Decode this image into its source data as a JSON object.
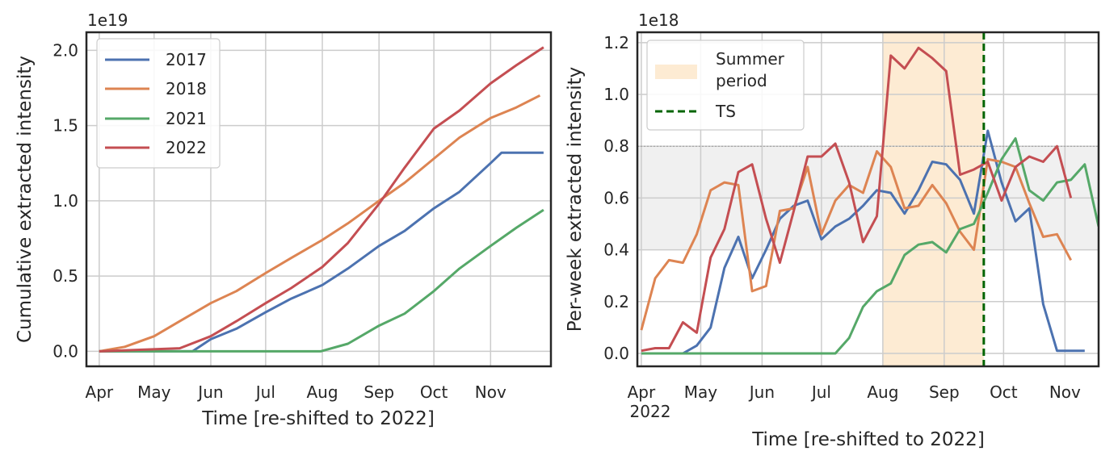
{
  "chart_data": [
    {
      "type": "line",
      "xlabel": "Time [re-shifted to 2022]",
      "ylabel": "Cumulative extracted intensity",
      "offset_text": "1e19",
      "x_ticks": [
        "Apr",
        "May",
        "Jun",
        "Jul",
        "Aug",
        "Sep",
        "Oct",
        "Nov"
      ],
      "y_ticks": [
        "0.0",
        "0.5",
        "1.0",
        "1.5",
        "2.0"
      ],
      "xlim": [
        "2022-03-25",
        "2022-12-04"
      ],
      "ylim": [
        -0.1,
        2.12
      ],
      "grid": true,
      "legend_position": "top-left",
      "series": [
        {
          "name": "2017",
          "color": "#4c72b0",
          "points": [
            [
              "2022-04-01",
              0
            ],
            [
              "2022-05-22",
              0
            ],
            [
              "2022-06-01",
              0.08
            ],
            [
              "2022-06-15",
              0.15
            ],
            [
              "2022-07-01",
              0.26
            ],
            [
              "2022-07-15",
              0.35
            ],
            [
              "2022-08-01",
              0.44
            ],
            [
              "2022-08-15",
              0.55
            ],
            [
              "2022-09-01",
              0.7
            ],
            [
              "2022-09-15",
              0.8
            ],
            [
              "2022-10-01",
              0.95
            ],
            [
              "2022-10-15",
              1.06
            ],
            [
              "2022-11-01",
              1.25
            ],
            [
              "2022-11-07",
              1.32
            ],
            [
              "2022-11-30",
              1.32
            ]
          ]
        },
        {
          "name": "2018",
          "color": "#dd8452",
          "points": [
            [
              "2022-04-01",
              0
            ],
            [
              "2022-04-15",
              0.03
            ],
            [
              "2022-05-01",
              0.1
            ],
            [
              "2022-05-15",
              0.2
            ],
            [
              "2022-06-01",
              0.32
            ],
            [
              "2022-06-15",
              0.4
            ],
            [
              "2022-07-01",
              0.52
            ],
            [
              "2022-07-15",
              0.62
            ],
            [
              "2022-08-01",
              0.74
            ],
            [
              "2022-08-15",
              0.85
            ],
            [
              "2022-09-01",
              1.0
            ],
            [
              "2022-09-15",
              1.12
            ],
            [
              "2022-10-01",
              1.28
            ],
            [
              "2022-10-15",
              1.42
            ],
            [
              "2022-11-01",
              1.55
            ],
            [
              "2022-11-15",
              1.62
            ],
            [
              "2022-11-28",
              1.7
            ]
          ]
        },
        {
          "name": "2021",
          "color": "#55a868",
          "points": [
            [
              "2022-04-01",
              0
            ],
            [
              "2022-07-31",
              0
            ],
            [
              "2022-08-15",
              0.05
            ],
            [
              "2022-09-01",
              0.17
            ],
            [
              "2022-09-15",
              0.25
            ],
            [
              "2022-10-01",
              0.4
            ],
            [
              "2022-10-15",
              0.55
            ],
            [
              "2022-11-01",
              0.7
            ],
            [
              "2022-11-15",
              0.82
            ],
            [
              "2022-11-30",
              0.94
            ]
          ]
        },
        {
          "name": "2022",
          "color": "#c44e52",
          "points": [
            [
              "2022-04-01",
              0
            ],
            [
              "2022-05-15",
              0.02
            ],
            [
              "2022-06-01",
              0.1
            ],
            [
              "2022-06-15",
              0.2
            ],
            [
              "2022-07-01",
              0.32
            ],
            [
              "2022-07-15",
              0.42
            ],
            [
              "2022-08-01",
              0.56
            ],
            [
              "2022-08-15",
              0.72
            ],
            [
              "2022-09-01",
              0.98
            ],
            [
              "2022-09-15",
              1.22
            ],
            [
              "2022-10-01",
              1.48
            ],
            [
              "2022-10-15",
              1.6
            ],
            [
              "2022-11-01",
              1.78
            ],
            [
              "2022-11-15",
              1.9
            ],
            [
              "2022-11-30",
              2.02
            ]
          ]
        }
      ]
    },
    {
      "type": "line",
      "xlabel": "Time [re-shifted to 2022]",
      "ylabel": "Per-week extracted intensity",
      "offset_text": "1e18",
      "year_label": "2022",
      "x_ticks": [
        "Apr",
        "May",
        "Jun",
        "Jul",
        "Aug",
        "Sep",
        "Oct",
        "Nov"
      ],
      "y_ticks": [
        "0.0",
        "0.2",
        "0.4",
        "0.6",
        "0.8",
        "1.0",
        "1.2"
      ],
      "xlim": [
        "2022-03-30",
        "2022-11-18"
      ],
      "ylim": [
        -0.05,
        1.24
      ],
      "grid": true,
      "legend_position": "top-left",
      "summer_period": {
        "name": "Summer period",
        "start": "2022-08-01",
        "end": "2022-09-21",
        "color": "#fdebd3"
      },
      "ts_line": {
        "name": "TS",
        "date": "2022-09-21",
        "color": "#006400"
      },
      "band": {
        "low": 0.4,
        "high": 0.8,
        "color": "#f0f0f0"
      },
      "series": [
        {
          "name": "2017",
          "color": "#4c72b0",
          "x": [
            "2022-04-01",
            "2022-04-08",
            "2022-04-15",
            "2022-04-22",
            "2022-04-29",
            "2022-05-06",
            "2022-05-13",
            "2022-05-20",
            "2022-05-27",
            "2022-06-03",
            "2022-06-10",
            "2022-06-17",
            "2022-06-24",
            "2022-07-01",
            "2022-07-08",
            "2022-07-15",
            "2022-07-22",
            "2022-07-29",
            "2022-08-05",
            "2022-08-12",
            "2022-08-19",
            "2022-08-26",
            "2022-09-02",
            "2022-09-09",
            "2022-09-16",
            "2022-09-23",
            "2022-09-30",
            "2022-10-07",
            "2022-10-14",
            "2022-10-21",
            "2022-10-28",
            "2022-11-04",
            "2022-11-11"
          ],
          "values": [
            0,
            0,
            0,
            0,
            0.03,
            0.1,
            0.33,
            0.45,
            0.29,
            0.4,
            0.52,
            0.57,
            0.59,
            0.44,
            0.49,
            0.52,
            0.57,
            0.63,
            0.62,
            0.54,
            0.63,
            0.74,
            0.73,
            0.67,
            0.54,
            0.86,
            0.66,
            0.51,
            0.56,
            0.19,
            0.01,
            0.01,
            0.01
          ]
        },
        {
          "name": "2018",
          "color": "#dd8452",
          "x": [
            "2022-04-01",
            "2022-04-08",
            "2022-04-15",
            "2022-04-22",
            "2022-04-29",
            "2022-05-06",
            "2022-05-13",
            "2022-05-20",
            "2022-05-27",
            "2022-06-03",
            "2022-06-10",
            "2022-06-17",
            "2022-06-24",
            "2022-07-01",
            "2022-07-08",
            "2022-07-15",
            "2022-07-22",
            "2022-07-29",
            "2022-08-05",
            "2022-08-12",
            "2022-08-19",
            "2022-08-26",
            "2022-09-02",
            "2022-09-09",
            "2022-09-16",
            "2022-09-23",
            "2022-09-30",
            "2022-10-07",
            "2022-10-14",
            "2022-10-21",
            "2022-10-28",
            "2022-11-04",
            "2022-11-11"
          ],
          "values": [
            0.09,
            0.29,
            0.36,
            0.35,
            0.46,
            0.63,
            0.66,
            0.65,
            0.24,
            0.26,
            0.55,
            0.56,
            0.72,
            0.46,
            0.59,
            0.65,
            0.62,
            0.78,
            0.72,
            0.56,
            0.57,
            0.65,
            0.58,
            0.47,
            0.4,
            0.75,
            0.74,
            0.72,
            0.58,
            0.45,
            0.46,
            0.36,
            null
          ]
        },
        {
          "name": "2021",
          "color": "#55a868",
          "x": [
            "2022-04-01",
            "2022-04-08",
            "2022-04-15",
            "2022-04-22",
            "2022-04-29",
            "2022-05-06",
            "2022-05-13",
            "2022-05-20",
            "2022-05-27",
            "2022-06-03",
            "2022-06-10",
            "2022-06-17",
            "2022-06-24",
            "2022-07-01",
            "2022-07-08",
            "2022-07-15",
            "2022-07-22",
            "2022-07-29",
            "2022-08-05",
            "2022-08-12",
            "2022-08-19",
            "2022-08-26",
            "2022-09-02",
            "2022-09-09",
            "2022-09-16",
            "2022-09-23",
            "2022-09-30",
            "2022-10-07",
            "2022-10-14",
            "2022-10-21",
            "2022-10-28",
            "2022-11-04",
            "2022-11-11",
            "2022-11-18"
          ],
          "values": [
            0,
            0,
            0,
            0,
            0,
            0,
            0,
            0,
            0,
            0,
            0,
            0,
            0,
            0,
            0,
            0.06,
            0.18,
            0.24,
            0.27,
            0.38,
            0.42,
            0.43,
            0.39,
            0.48,
            0.5,
            0.62,
            0.75,
            0.83,
            0.63,
            0.59,
            0.66,
            0.67,
            0.73,
            0.49
          ]
        },
        {
          "name": "2022",
          "color": "#c44e52",
          "x": [
            "2022-04-01",
            "2022-04-08",
            "2022-04-15",
            "2022-04-22",
            "2022-04-29",
            "2022-05-06",
            "2022-05-13",
            "2022-05-20",
            "2022-05-27",
            "2022-06-03",
            "2022-06-10",
            "2022-06-17",
            "2022-06-24",
            "2022-07-01",
            "2022-07-08",
            "2022-07-15",
            "2022-07-22",
            "2022-07-29",
            "2022-08-05",
            "2022-08-12",
            "2022-08-19",
            "2022-08-26",
            "2022-09-02",
            "2022-09-09",
            "2022-09-16",
            "2022-09-23",
            "2022-09-30",
            "2022-10-07",
            "2022-10-14",
            "2022-10-21",
            "2022-10-28",
            "2022-11-04",
            "2022-11-11"
          ],
          "values": [
            0.01,
            0.02,
            0.02,
            0.12,
            0.08,
            0.37,
            0.48,
            0.7,
            0.73,
            0.52,
            0.35,
            0.55,
            0.76,
            0.76,
            0.81,
            0.66,
            0.43,
            0.53,
            1.15,
            1.1,
            1.18,
            1.14,
            1.09,
            0.69,
            0.71,
            0.74,
            0.59,
            0.72,
            0.76,
            0.74,
            0.8,
            0.6,
            null
          ]
        }
      ]
    }
  ]
}
